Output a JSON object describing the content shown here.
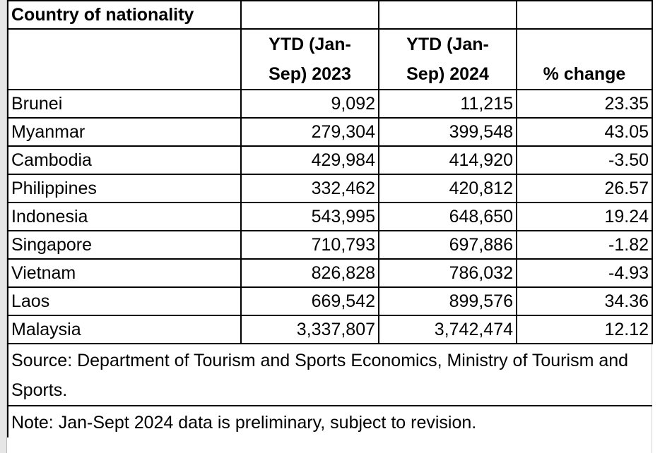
{
  "header": {
    "title": "Country of nationality"
  },
  "table": {
    "columns": [
      "YTD (Jan-Sep) 2023",
      "YTD (Jan-Sep) 2024",
      "% change"
    ],
    "rows": [
      [
        "Brunei",
        "9,092",
        "11,215",
        "23.35"
      ],
      [
        "Myanmar",
        "279,304",
        "399,548",
        "43.05"
      ],
      [
        "Cambodia",
        "429,984",
        "414,920",
        "-3.50"
      ],
      [
        "Philippines",
        "332,462",
        "420,812",
        "26.57"
      ],
      [
        "Indonesia",
        "543,995",
        "648,650",
        "19.24"
      ],
      [
        "Singapore",
        "710,793",
        "697,886",
        "-1.82"
      ],
      [
        "Vietnam",
        "826,828",
        "786,032",
        "-4.93"
      ],
      [
        "Laos",
        "669,542",
        "899,576",
        "34.36"
      ],
      [
        "Malaysia",
        "3,337,807",
        "3,742,474",
        "12.12"
      ]
    ]
  },
  "footer": {
    "source": "Source: Department of Tourism and Sports Economics, Ministry of Tourism and Sports.",
    "note": "Note: Jan-Sept 2024 data is preliminary, subject to revision."
  }
}
